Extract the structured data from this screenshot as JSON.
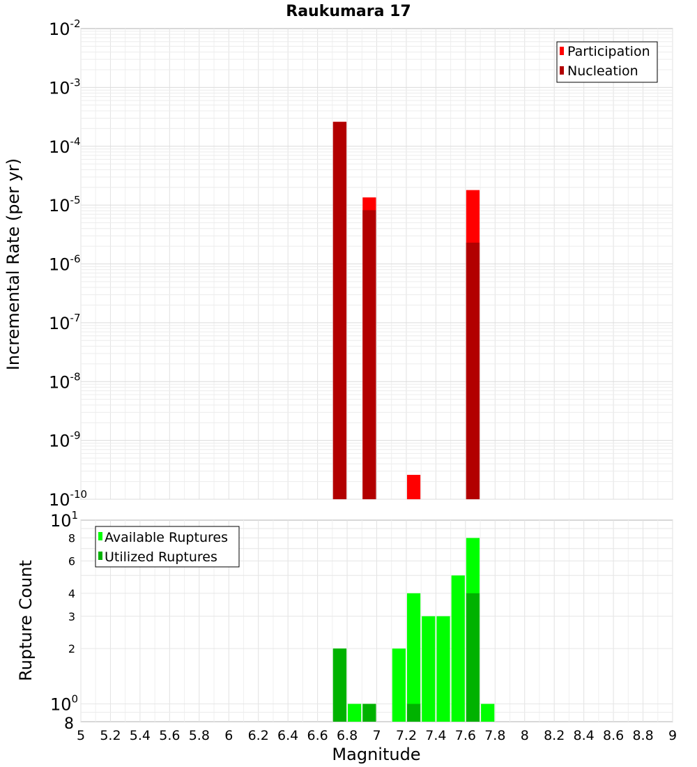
{
  "chart_data": [
    {
      "type": "bar",
      "title": "Raukumara 17",
      "ylabel": "Incremental Rate (per yr)",
      "y_scale": "log",
      "ylim": [
        1e-10,
        0.01
      ],
      "xlim": [
        5,
        9
      ],
      "y_ticks": [
        {
          "base": "10",
          "exp": "-10"
        },
        {
          "base": "10",
          "exp": "-9"
        },
        {
          "base": "10",
          "exp": "-8"
        },
        {
          "base": "10",
          "exp": "-7"
        },
        {
          "base": "10",
          "exp": "-6"
        },
        {
          "base": "10",
          "exp": "-5"
        },
        {
          "base": "10",
          "exp": "-4"
        },
        {
          "base": "10",
          "exp": "-3"
        },
        {
          "base": "10",
          "exp": "-2"
        }
      ],
      "legend_position": "top-right",
      "series": [
        {
          "name": "Participation",
          "color": "#ff0000",
          "points": [
            {
              "x": 6.75,
              "y": 0.00026
            },
            {
              "x": 6.95,
              "y": 1.35e-05
            },
            {
              "x": 7.25,
              "y": 2.6e-10
            },
            {
              "x": 7.65,
              "y": 1.8e-05
            }
          ]
        },
        {
          "name": "Nucleation",
          "color": "#b20000",
          "points": [
            {
              "x": 6.75,
              "y": 0.00026
            },
            {
              "x": 6.95,
              "y": 8.2e-06
            },
            {
              "x": 7.65,
              "y": 2.3e-06
            }
          ]
        }
      ]
    },
    {
      "type": "bar",
      "xlabel": "Magnitude",
      "ylabel": "Rupture Count",
      "y_scale": "log",
      "ylim": [
        0.8,
        10
      ],
      "xlim": [
        5,
        9
      ],
      "y_ticks_plain": [
        "8",
        "6",
        "4",
        "3",
        "2"
      ],
      "y_ticks_power": [
        {
          "base": "10",
          "exp": "1"
        },
        {
          "base": "10",
          "exp": "0"
        }
      ],
      "y_bottom_label": "8",
      "x_ticks": [
        "5",
        "5.2",
        "5.4",
        "5.6",
        "5.8",
        "6",
        "6.2",
        "6.4",
        "6.6",
        "6.8",
        "7",
        "7.2",
        "7.4",
        "7.6",
        "7.8",
        "8",
        "8.2",
        "8.4",
        "8.6",
        "8.8",
        "9"
      ],
      "legend_position": "top-left",
      "series": [
        {
          "name": "Available Ruptures",
          "color": "#00ff00",
          "points": [
            {
              "x": 6.75,
              "y": 2
            },
            {
              "x": 6.85,
              "y": 1
            },
            {
              "x": 6.95,
              "y": 1
            },
            {
              "x": 7.15,
              "y": 2
            },
            {
              "x": 7.25,
              "y": 4
            },
            {
              "x": 7.35,
              "y": 3
            },
            {
              "x": 7.45,
              "y": 3
            },
            {
              "x": 7.55,
              "y": 5
            },
            {
              "x": 7.65,
              "y": 8
            },
            {
              "x": 7.75,
              "y": 1
            }
          ]
        },
        {
          "name": "Utilized Ruptures",
          "color": "#00b200",
          "points": [
            {
              "x": 6.75,
              "y": 2
            },
            {
              "x": 6.95,
              "y": 1
            },
            {
              "x": 7.25,
              "y": 1
            },
            {
              "x": 7.65,
              "y": 4
            }
          ]
        }
      ]
    }
  ]
}
